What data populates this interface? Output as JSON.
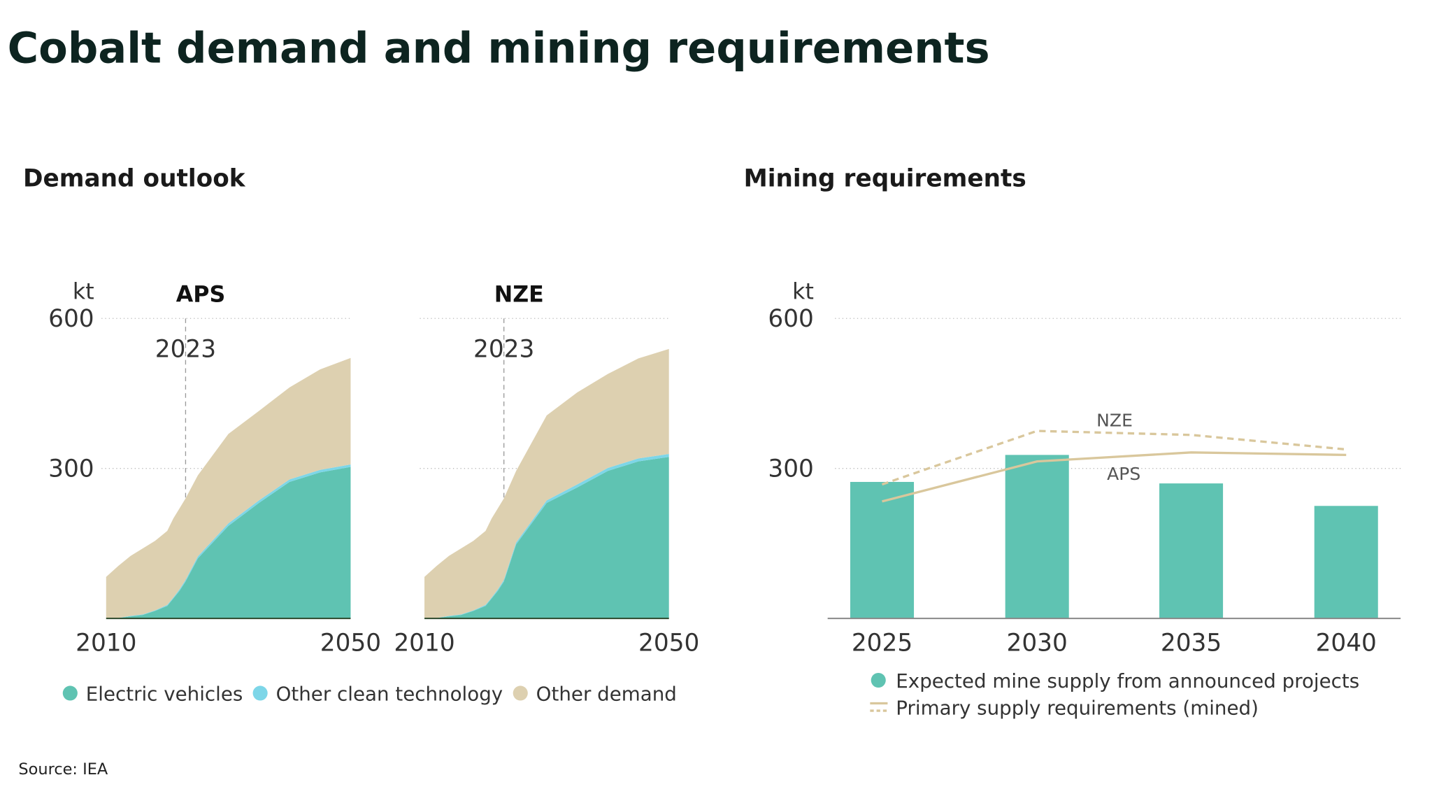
{
  "title": "Cobalt demand and mining requirements",
  "source": "Source: IEA",
  "chart_data": [
    {
      "type": "area",
      "title": "Demand outlook",
      "y_label": "kt",
      "x": [
        2010,
        2012,
        2014,
        2016,
        2018,
        2020,
        2021,
        2022,
        2023,
        2025,
        2030,
        2035,
        2040,
        2045,
        2050
      ],
      "xlim": [
        2010,
        2050
      ],
      "xticks": [
        2010,
        2050
      ],
      "ylim": [
        0,
        600
      ],
      "yticks": [
        300,
        600
      ],
      "grid": true,
      "vline": 2023,
      "series": [
        {
          "name": "Electric vehicles",
          "color": "#5fc3b2"
        },
        {
          "name": "Other clean technology",
          "color": "#7dd6e8"
        },
        {
          "name": "Other demand",
          "color": "#ddd0b0"
        }
      ],
      "panels": [
        {
          "title": "APS",
          "series_values": [
            [
              0,
              1,
              4,
              7,
              15,
              25,
              40,
              55,
              74,
              120,
              185,
              231,
              273,
              292,
              303
            ],
            [
              0,
              0,
              1,
              1,
              1,
              2,
              2,
              3,
              3,
              4,
              5,
              5,
              5,
              5,
              5
            ],
            [
              83,
              104,
              120,
              132,
              139,
              148,
              158,
              162,
              163,
              162,
              179,
              179,
              184,
              201,
              213
            ]
          ]
        },
        {
          "title": "NZE",
          "series_values": [
            [
              0,
              1,
              4,
              7,
              15,
              25,
              40,
              55,
              74,
              148,
              231,
              262,
              295,
              314,
              323
            ],
            [
              0,
              0,
              1,
              1,
              1,
              2,
              2,
              3,
              3,
              4,
              5,
              6,
              6,
              6,
              6
            ],
            [
              83,
              104,
              120,
              132,
              139,
              148,
              158,
              162,
              163,
              143,
              170,
              184,
              188,
              200,
              210
            ]
          ]
        }
      ]
    },
    {
      "type": "bar_line",
      "title": "Mining requirements",
      "y_label": "kt",
      "categories": [
        "2025",
        "2030",
        "2035",
        "2040"
      ],
      "ylim": [
        0,
        600
      ],
      "yticks": [
        300,
        600
      ],
      "grid": true,
      "series": [
        {
          "name": "Expected mine supply from announced projects",
          "type": "bar",
          "color": "#5fc3b2",
          "values": [
            273,
            327,
            270,
            225
          ]
        },
        {
          "name": "NZE",
          "type": "line",
          "dashed": true,
          "color": "#d9c79c",
          "values": [
            268,
            375,
            367,
            338
          ]
        },
        {
          "name": "APS",
          "type": "line",
          "dashed": false,
          "color": "#d9c79c",
          "values": [
            234,
            314,
            332,
            327
          ]
        }
      ],
      "line_legend": "Primary supply requirements (mined)"
    }
  ]
}
